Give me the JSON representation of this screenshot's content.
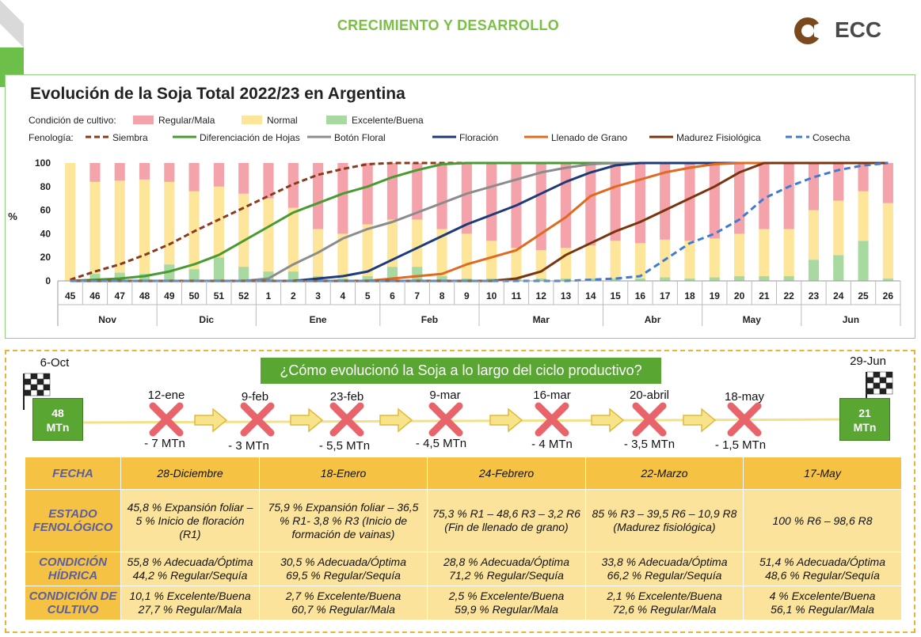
{
  "header": {
    "title": "CRECIMIENTO Y DESARROLLO",
    "logo_text": "ECC"
  },
  "colors": {
    "regular_mala": "#f4a3ab",
    "normal": "#fde69a",
    "excelente_buena": "#a8d9a0",
    "siembra": "#8a3a1a",
    "diferenciacion": "#4a9a32",
    "boton_floral": "#8c8c8c",
    "floracion": "#1f3a78",
    "llenado": "#e06a1f",
    "madurez": "#7a3410",
    "cosecha": "#3f7bd0",
    "accent_green": "#7ac143"
  },
  "chart_data": {
    "type": "bar",
    "title": "Evolución de la Soja Total 2022/23 en Argentina",
    "ylabel": "%",
    "ylim": [
      0,
      100
    ],
    "yticks": [
      "0",
      "20",
      "40",
      "60",
      "80",
      "100"
    ],
    "condicion_label": "Condición de cultivo:",
    "fenologia_label": "Fenología:",
    "weeks": [
      "45",
      "46",
      "47",
      "48",
      "49",
      "50",
      "51",
      "52",
      "1",
      "2",
      "3",
      "4",
      "5",
      "6",
      "7",
      "8",
      "9",
      "10",
      "11",
      "12",
      "13",
      "14",
      "15",
      "16",
      "17",
      "18",
      "19",
      "20",
      "21",
      "22",
      "23",
      "24",
      "25",
      "26"
    ],
    "months": [
      {
        "name": "Nov",
        "weeks": 4
      },
      {
        "name": "Dic",
        "weeks": 4
      },
      {
        "name": "Ene",
        "weeks": 5
      },
      {
        "name": "Feb",
        "weeks": 4
      },
      {
        "name": "Mar",
        "weeks": 5
      },
      {
        "name": "Abr",
        "weeks": 4
      },
      {
        "name": "May",
        "weeks": 4
      },
      {
        "name": "Jun",
        "weeks": 4
      }
    ],
    "bar_series": [
      {
        "name": "Regular/Mala",
        "values": [
          0,
          16,
          15,
          14,
          16,
          24,
          20,
          26,
          30,
          38,
          56,
          60,
          52,
          48,
          48,
          56,
          60,
          66,
          72,
          74,
          72,
          70,
          66,
          68,
          65,
          66,
          64,
          60,
          56,
          56,
          40,
          32,
          24,
          34
        ]
      },
      {
        "name": "Normal",
        "values": [
          100,
          78,
          78,
          80,
          70,
          66,
          60,
          62,
          62,
          54,
          40,
          38,
          44,
          40,
          40,
          40,
          38,
          32,
          26,
          24,
          26,
          28,
          32,
          30,
          32,
          32,
          33,
          36,
          40,
          40,
          42,
          46,
          42,
          64
        ]
      },
      {
        "name": "Excelente/Buena",
        "values": [
          0,
          6,
          7,
          6,
          14,
          10,
          20,
          12,
          8,
          8,
          4,
          2,
          4,
          12,
          12,
          4,
          2,
          2,
          2,
          2,
          2,
          2,
          2,
          2,
          3,
          2,
          3,
          4,
          4,
          4,
          18,
          22,
          34,
          2
        ]
      }
    ],
    "line_series": [
      {
        "name": "Siembra",
        "values": [
          1,
          8,
          14,
          22,
          31,
          42,
          52,
          62,
          72,
          82,
          90,
          95,
          99,
          100,
          100,
          100,
          100,
          100,
          100,
          100,
          100,
          100,
          100,
          100,
          100,
          100,
          100,
          100,
          100,
          100,
          100,
          100,
          100,
          100
        ]
      },
      {
        "name": "Diferenciación de Hojas",
        "values": [
          0,
          1,
          2,
          4,
          8,
          14,
          22,
          34,
          46,
          58,
          66,
          74,
          80,
          88,
          94,
          99,
          100,
          100,
          100,
          100,
          100,
          100,
          100,
          100,
          100,
          100,
          100,
          100,
          100,
          100,
          100,
          100,
          100,
          100
        ]
      },
      {
        "name": "Botón Floral",
        "values": [
          0,
          0,
          0,
          0,
          0,
          0,
          0,
          0,
          2,
          14,
          24,
          36,
          44,
          50,
          58,
          66,
          74,
          80,
          86,
          92,
          96,
          99,
          100,
          100,
          100,
          100,
          100,
          100,
          100,
          100,
          100,
          100,
          100,
          100
        ]
      },
      {
        "name": "Floración",
        "values": [
          0,
          0,
          0,
          0,
          0,
          0,
          0,
          0,
          0,
          0,
          2,
          4,
          8,
          18,
          28,
          38,
          48,
          56,
          64,
          74,
          84,
          92,
          98,
          100,
          100,
          100,
          100,
          100,
          100,
          100,
          100,
          100,
          100,
          100
        ]
      },
      {
        "name": "Llenado de Grano",
        "values": [
          0,
          0,
          0,
          0,
          0,
          0,
          0,
          0,
          0,
          0,
          0,
          0,
          0,
          2,
          4,
          6,
          14,
          20,
          26,
          40,
          54,
          72,
          80,
          86,
          92,
          96,
          99,
          100,
          100,
          100,
          100,
          100,
          100,
          100
        ]
      },
      {
        "name": "Madurez Fisiológica",
        "values": [
          0,
          0,
          0,
          0,
          0,
          0,
          0,
          0,
          0,
          0,
          0,
          0,
          0,
          0,
          0,
          0,
          0,
          0,
          2,
          8,
          22,
          32,
          42,
          50,
          60,
          70,
          80,
          92,
          100,
          100,
          100,
          100,
          100,
          100
        ]
      },
      {
        "name": "Cosecha",
        "values": [
          0,
          0,
          0,
          0,
          0,
          0,
          0,
          0,
          0,
          0,
          0,
          0,
          0,
          0,
          0,
          0,
          0,
          0,
          0,
          0,
          0,
          1,
          2,
          4,
          18,
          32,
          40,
          52,
          70,
          80,
          88,
          94,
          98,
          100
        ]
      }
    ]
  },
  "timeline": {
    "question": "¿Cómo evolucionó la Soja a lo largo del ciclo productivo?",
    "start": {
      "date": "6-Oct",
      "value": "48",
      "unit": "MTn"
    },
    "end": {
      "date": "29-Jun",
      "value": "21",
      "unit": "MTn"
    },
    "events": [
      {
        "date": "12-ene",
        "delta": "- 7 MTn"
      },
      {
        "date": "9-feb",
        "delta": "- 3 MTn"
      },
      {
        "date": "23-feb",
        "delta": "- 5,5 MTn"
      },
      {
        "date": "9-mar",
        "delta": "- 4,5 MTn"
      },
      {
        "date": "16-mar",
        "delta": "- 4 MTn"
      },
      {
        "date": "20-abril",
        "delta": "- 3,5 MTn"
      },
      {
        "date": "18-may",
        "delta": "- 1,5 MTn"
      }
    ]
  },
  "table": {
    "row_headers": [
      "FECHA",
      "ESTADO FENOLÓGICO",
      "CONDICIÓN HÍDRICA",
      "CONDICIÓN DE CULTIVO"
    ],
    "columns": [
      {
        "fecha": "28-Diciembre",
        "estado": "45,8 % Expansión foliar – 5 % Inicio de floración (R1)",
        "hidrica_1": "55,8 % Adecuada/Óptima",
        "hidrica_2": "44,2 % Regular/Sequía",
        "cultivo_1": "10,1 % Excelente/Buena",
        "cultivo_2": "27,7 % Regular/Mala"
      },
      {
        "fecha": "18-Enero",
        "estado": "75,9 % Expansión foliar – 36,5 % R1- 3,8 % R3 (Inicio de formación de vainas)",
        "hidrica_1": "30,5 % Adecuada/Óptima",
        "hidrica_2": "69,5 % Regular/Sequía",
        "cultivo_1": "2,7 % Excelente/Buena",
        "cultivo_2": "60,7 % Regular/Mala"
      },
      {
        "fecha": "24-Febrero",
        "estado": "75,3 % R1 – 48,6 R3 – 3,2 R6 (Fin de llenado de grano)",
        "hidrica_1": "28,8 % Adecuada/Óptima",
        "hidrica_2": "71,2 % Regular/Sequía",
        "cultivo_1": "2,5 % Excelente/Buena",
        "cultivo_2": "59,9 % Regular/Mala"
      },
      {
        "fecha": "22-Marzo",
        "estado": "85 % R3 – 39,5 R6 – 10,9 R8 (Madurez fisiológica)",
        "hidrica_1": "33,8 % Adecuada/Óptima",
        "hidrica_2": "66,2 % Regular/Sequía",
        "cultivo_1": "2,1 % Excelente/Buena",
        "cultivo_2": "72,6 % Regular/Mala"
      },
      {
        "fecha": "17-May",
        "estado": "100 % R6 – 98,6 R8",
        "hidrica_1": "51,4 % Adecuada/Óptima",
        "hidrica_2": "48,6 % Regular/Sequía",
        "cultivo_1": "4 % Excelente/Buena",
        "cultivo_2": "56,1 % Regular/Mala"
      }
    ]
  }
}
